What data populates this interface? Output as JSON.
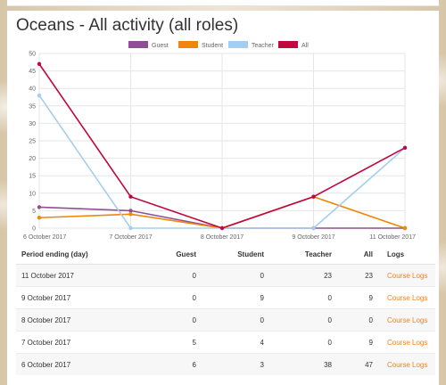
{
  "page": {
    "title": "Oceans - All activity (all roles)"
  },
  "colors": {
    "Guest": "#8e5092",
    "Student": "#f0860a",
    "Teacher": "#a5cdef",
    "All": "#c0073f",
    "link": "#f98012"
  },
  "chart_data": {
    "type": "line",
    "title": "",
    "categories": [
      "6 October 2017",
      "7 October 2017",
      "8 October 2017",
      "9 October 2017",
      "11 October 2017"
    ],
    "ylim": [
      0,
      50
    ],
    "yticks": [
      0,
      5,
      10,
      15,
      20,
      25,
      30,
      35,
      40,
      45,
      50
    ],
    "grid": true,
    "legend_position": "top",
    "series": [
      {
        "name": "Guest",
        "values": [
          6,
          5,
          0,
          0,
          0
        ]
      },
      {
        "name": "Student",
        "values": [
          3,
          4,
          0,
          9,
          0
        ]
      },
      {
        "name": "Teacher",
        "values": [
          38,
          0,
          0,
          0,
          23
        ]
      },
      {
        "name": "All",
        "values": [
          47,
          9,
          0,
          9,
          23
        ]
      }
    ]
  },
  "table": {
    "headers": [
      "Period ending (day)",
      "Guest",
      "Student",
      "Teacher",
      "All",
      "Logs"
    ],
    "rows": [
      {
        "period": "11 October 2017",
        "guest": "0",
        "student": "0",
        "teacher": "23",
        "all": "23",
        "logs": "Course Logs"
      },
      {
        "period": "9 October 2017",
        "guest": "0",
        "student": "9",
        "teacher": "0",
        "all": "9",
        "logs": "Course Logs"
      },
      {
        "period": "8 October 2017",
        "guest": "0",
        "student": "0",
        "teacher": "0",
        "all": "0",
        "logs": "Course Logs"
      },
      {
        "period": "7 October 2017",
        "guest": "5",
        "student": "4",
        "teacher": "0",
        "all": "9",
        "logs": "Course Logs"
      },
      {
        "period": "6 October 2017",
        "guest": "6",
        "student": "3",
        "teacher": "38",
        "all": "47",
        "logs": "Course Logs"
      }
    ]
  }
}
